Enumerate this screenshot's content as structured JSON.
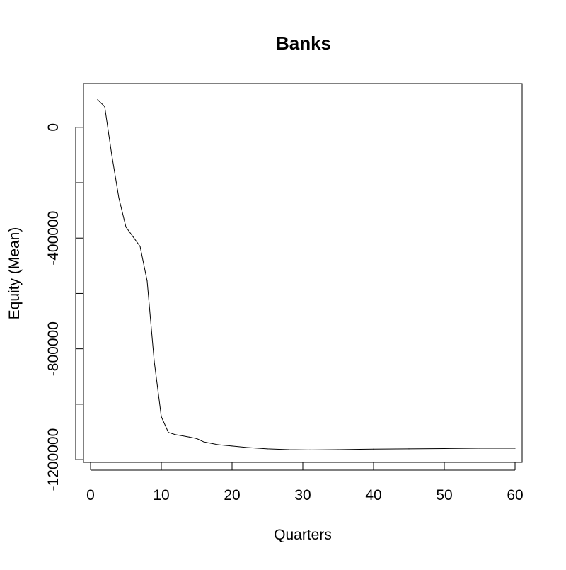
{
  "chart_data": {
    "type": "line",
    "title": "Banks",
    "xlabel": "Quarters",
    "ylabel": "Equity (Mean)",
    "xlim": [
      -1,
      61
    ],
    "ylim": [
      -1210000,
      158000
    ],
    "xticks": [
      0,
      10,
      20,
      30,
      40,
      50,
      60
    ],
    "xtick_labels": [
      "0",
      "10",
      "20",
      "30",
      "40",
      "50",
      "60"
    ],
    "yticks": [
      -1200000,
      -1000000,
      -800000,
      -600000,
      -400000,
      -200000,
      0
    ],
    "ytick_labels": [
      "-1200000",
      "",
      "-800000",
      "",
      "-400000",
      "",
      "0"
    ],
    "grid": false,
    "series": [
      {
        "x": [
          1,
          2,
          3,
          4,
          5,
          6,
          7,
          8,
          9,
          10,
          11,
          12,
          13,
          14,
          15,
          16,
          17,
          18,
          20,
          22,
          25,
          28,
          31,
          35,
          40,
          45,
          50,
          55,
          60
        ],
        "y": [
          100000,
          75000,
          -100000,
          -255000,
          -360000,
          -395000,
          -430000,
          -555000,
          -845000,
          -1045000,
          -1102000,
          -1110000,
          -1114000,
          -1119000,
          -1124000,
          -1136000,
          -1141000,
          -1146000,
          -1151000,
          -1156000,
          -1161000,
          -1164000,
          -1165000,
          -1164000,
          -1162000,
          -1161000,
          -1160000,
          -1159000,
          -1159000
        ]
      }
    ]
  }
}
